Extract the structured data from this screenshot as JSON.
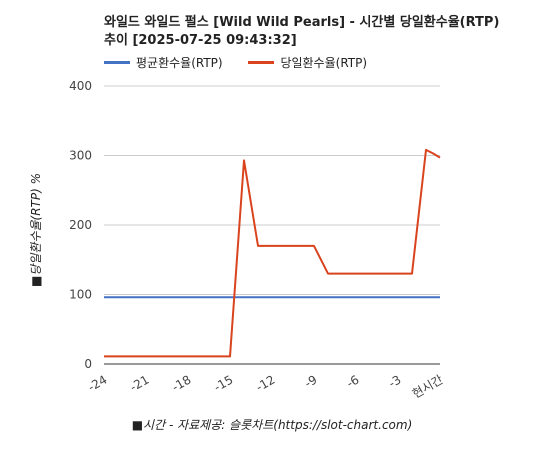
{
  "header": {
    "title_line1": "와일드 와일드 펄스 [Wild Wild Pearls] - 시간별 당일환수율(RTP)",
    "title_line2": "추이 [2025-07-25 09:43:32]"
  },
  "footer": {
    "source": "■시간 - 자료제공: 슬롯차트(https://slot-chart.com)"
  },
  "chart_data": {
    "type": "line",
    "ylabel": "■당일환수율(RTP) %",
    "xlabel": "",
    "ylim": [
      0,
      400
    ],
    "yticks": [
      0,
      100,
      200,
      300,
      400
    ],
    "xlim": [
      -24,
      0
    ],
    "xtick_values": [
      -24,
      -21,
      -18,
      -15,
      -12,
      -9,
      -6,
      -3,
      0
    ],
    "xtick_labels": [
      "-24",
      "-21",
      "-18",
      "-15",
      "-12",
      "-9",
      "-6",
      "-3",
      "현시간"
    ],
    "grid": true,
    "legend_position": "top-left",
    "series": [
      {
        "name": "평균환수율(RTP)",
        "color": "#4472c4",
        "x": [
          -24,
          0
        ],
        "y": [
          96,
          96
        ]
      },
      {
        "name": "당일환수율(RTP)",
        "color": "#d9441e",
        "x": [
          -24,
          -22,
          -20,
          -18,
          -16,
          -15,
          -14,
          -13,
          -12,
          -11,
          -10,
          -9,
          -8,
          -7,
          -6,
          -5,
          -4,
          -3,
          -2,
          -1,
          -0.5,
          0
        ],
        "y": [
          11,
          11,
          11,
          11,
          11,
          11,
          293,
          170,
          170,
          170,
          170,
          170,
          130,
          130,
          130,
          130,
          130,
          130,
          130,
          308,
          303,
          297
        ]
      }
    ]
  }
}
